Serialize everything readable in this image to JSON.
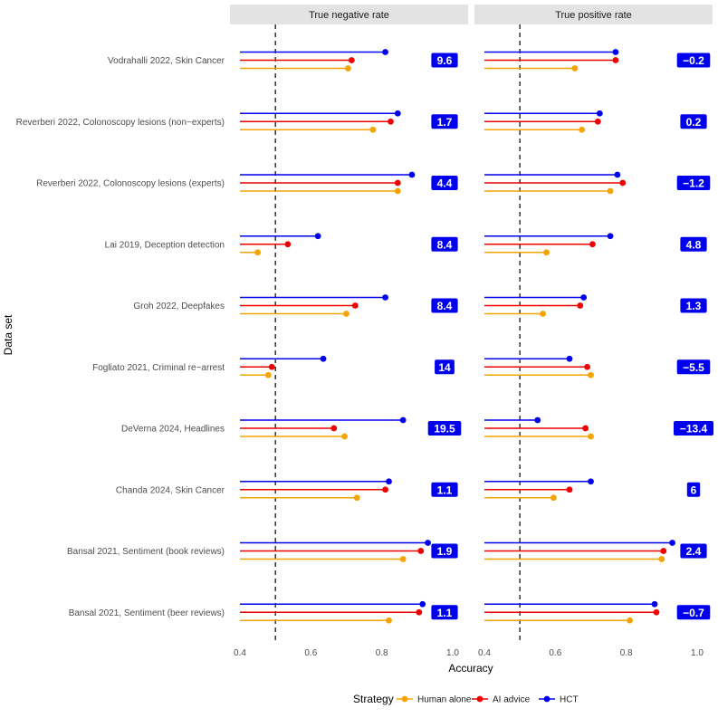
{
  "chart_data": {
    "type": "lollipop",
    "xlabel": "Accuracy",
    "ylabel": "Data set",
    "xlim": [
      0.4,
      1.0
    ],
    "xticks": [
      0.4,
      0.6,
      0.8,
      1.0
    ],
    "xtick_labels": [
      "0.4",
      "0.6",
      "0.8",
      "1.0"
    ],
    "reference_line": 0.5,
    "panels": [
      "True negative rate",
      "True positive rate"
    ],
    "datasets": [
      "Vodrahalli 2022, Skin Cancer",
      "Reverberi 2022, Colonoscopy lesions (non−experts)",
      "Reverberi 2022, Colonoscopy lesions (experts)",
      "Lai 2019, Deception detection",
      "Groh 2022, Deepfakes",
      "Fogliato 2021, Criminal re−arrest",
      "DeVerna 2024, Headlines",
      "Chanda 2024, Skin Cancer",
      "Bansal 2021, Sentiment (book reviews)",
      "Bansal 2021, Sentiment (beer reviews)"
    ],
    "series": [
      {
        "name": "HCT",
        "color": "#0000ee",
        "values_tnr": [
          0.81,
          0.845,
          0.885,
          0.62,
          0.81,
          0.635,
          0.86,
          0.82,
          0.93,
          0.915
        ],
        "values_tpr": [
          0.77,
          0.725,
          0.775,
          0.755,
          0.68,
          0.64,
          0.55,
          0.7,
          0.93,
          0.88
        ]
      },
      {
        "name": "AI advice",
        "color": "#ee0000",
        "values_tnr": [
          0.715,
          0.825,
          0.845,
          0.535,
          0.725,
          0.49,
          0.665,
          0.81,
          0.91,
          0.905
        ],
        "values_tpr": [
          0.77,
          0.72,
          0.79,
          0.705,
          0.67,
          0.69,
          0.685,
          0.64,
          0.905,
          0.885
        ]
      },
      {
        "name": "Human alone",
        "color": "#f5a300",
        "values_tnr": [
          0.705,
          0.775,
          0.845,
          0.45,
          0.7,
          0.48,
          0.695,
          0.73,
          0.86,
          0.82
        ],
        "values_tpr": [
          0.655,
          0.675,
          0.755,
          0.575,
          0.565,
          0.7,
          0.7,
          0.595,
          0.9,
          0.81
        ]
      }
    ],
    "labels_tnr": [
      "9.6",
      "1.7",
      "4.4",
      "8.4",
      "8.4",
      "14",
      "19.5",
      "1.1",
      "1.9",
      "1.1"
    ],
    "labels_tpr": [
      "−0.2",
      "0.2",
      "−1.2",
      "4.8",
      "1.3",
      "−5.5",
      "−13.4",
      "6",
      "2.4",
      "−0.7"
    ],
    "label_color": "#0000ee",
    "legend": {
      "title": "Strategy",
      "position": "bottom",
      "entries": [
        "Human alone",
        "AI advice",
        "HCT"
      ]
    }
  }
}
